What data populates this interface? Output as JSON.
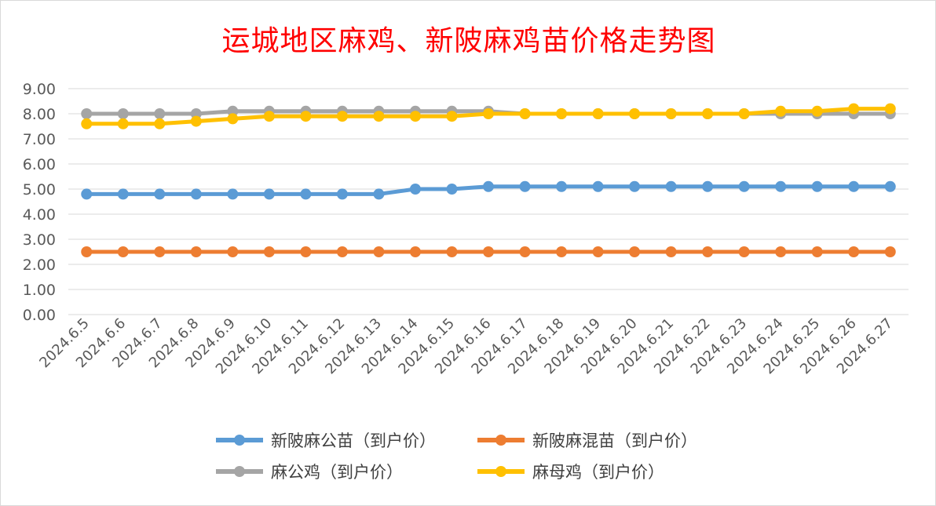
{
  "chart_data": {
    "type": "line",
    "title": "运城地区麻鸡、新陂麻鸡苗价格走势图",
    "categories": [
      "2024.6.5",
      "2024.6.6",
      "2024.6.7",
      "2024.6.8",
      "2024.6.9",
      "2024.6.10",
      "2024.6.11",
      "2024.6.12",
      "2024.6.13",
      "2024.6.14",
      "2024.6.15",
      "2024.6.16",
      "2024.6.17",
      "2024.6.18",
      "2024.6.19",
      "2024.6.20",
      "2024.6.21",
      "2024.6.22",
      "2024.6.23",
      "2024.6.24",
      "2024.6.25",
      "2024.6.26",
      "2024.6.27"
    ],
    "yticks": [
      "0.00",
      "1.00",
      "2.00",
      "3.00",
      "4.00",
      "5.00",
      "6.00",
      "7.00",
      "8.00",
      "9.00"
    ],
    "ylim": [
      0,
      9
    ],
    "grid": true,
    "legend_position": "bottom",
    "series": [
      {
        "name": "新陂麻公苗（到户价）",
        "color": "#5b9bd5",
        "values": [
          4.8,
          4.8,
          4.8,
          4.8,
          4.8,
          4.8,
          4.8,
          4.8,
          4.8,
          5.0,
          5.0,
          5.1,
          5.1,
          5.1,
          5.1,
          5.1,
          5.1,
          5.1,
          5.1,
          5.1,
          5.1,
          5.1,
          5.1
        ]
      },
      {
        "name": "新陂麻混苗（到户价）",
        "color": "#ed7d31",
        "values": [
          2.5,
          2.5,
          2.5,
          2.5,
          2.5,
          2.5,
          2.5,
          2.5,
          2.5,
          2.5,
          2.5,
          2.5,
          2.5,
          2.5,
          2.5,
          2.5,
          2.5,
          2.5,
          2.5,
          2.5,
          2.5,
          2.5,
          2.5
        ]
      },
      {
        "name": "麻公鸡（到户价）",
        "color": "#a5a5a5",
        "values": [
          8.0,
          8.0,
          8.0,
          8.0,
          8.1,
          8.1,
          8.1,
          8.1,
          8.1,
          8.1,
          8.1,
          8.1,
          8.0,
          8.0,
          8.0,
          8.0,
          8.0,
          8.0,
          8.0,
          8.0,
          8.0,
          8.0,
          8.0
        ]
      },
      {
        "name": "麻母鸡（到户价）",
        "color": "#ffc000",
        "values": [
          7.6,
          7.6,
          7.6,
          7.7,
          7.8,
          7.9,
          7.9,
          7.9,
          7.9,
          7.9,
          7.9,
          8.0,
          8.0,
          8.0,
          8.0,
          8.0,
          8.0,
          8.0,
          8.0,
          8.1,
          8.1,
          8.2,
          8.2
        ]
      }
    ]
  }
}
